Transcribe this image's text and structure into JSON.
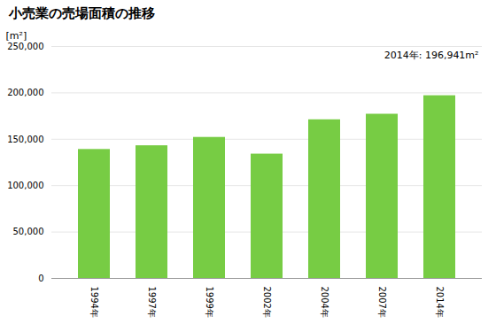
{
  "chart_data": {
    "type": "bar",
    "title": "小売業の売場面積の推移",
    "ylabel": "[m²]",
    "annotation": "2014年: 196,941m²",
    "categories": [
      "1994年",
      "1997年",
      "1999年",
      "2002年",
      "2004年",
      "2007年",
      "2014年"
    ],
    "values": [
      139000,
      143000,
      152000,
      134000,
      171000,
      177000,
      196941
    ],
    "color": "#77cc44",
    "ylim": [
      0,
      250000
    ],
    "yticks": [
      0,
      {
        "value": 50000,
        "label": "50,000"
      },
      {
        "value": 100000,
        "label": "100,000"
      },
      {
        "value": 150000,
        "label": "150,000"
      },
      {
        "value": 200000,
        "label": "200,000"
      },
      {
        "value": 250000,
        "label": "250,000"
      }
    ],
    "grid": true
  }
}
